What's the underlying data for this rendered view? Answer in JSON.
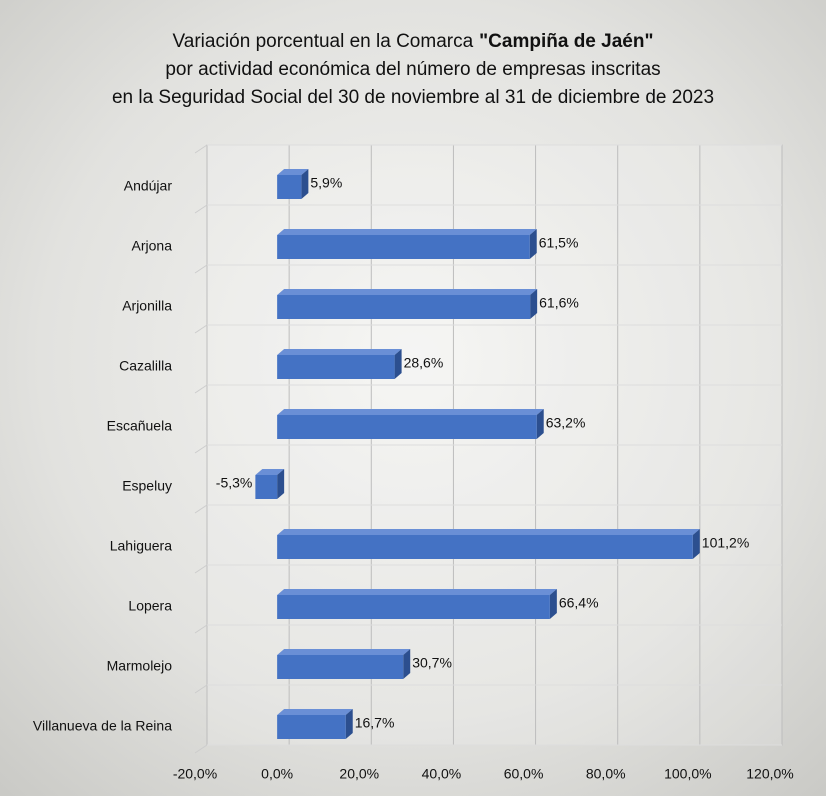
{
  "chart_data": {
    "type": "bar3d_horizontal",
    "title_lead": "Variación porcentual en la Comarca",
    "title_highlight": "\"Campiña de Jaén\"",
    "subtitle_lines": [
      "por actividad económica del número de empresas inscritas",
      "en la Seguridad Social del 30 de noviembre al 31 de diciembre de 2023"
    ],
    "categories": [
      "Andújar",
      "Arjona",
      "Arjonilla",
      "Cazalilla",
      "Escañuela",
      "Espeluy",
      "Lahiguera",
      "Lopera",
      "Marmolejo",
      "Villanueva de la Reina"
    ],
    "values": [
      5.9,
      61.5,
      61.6,
      28.6,
      63.2,
      -5.3,
      101.2,
      66.4,
      30.7,
      16.7
    ],
    "value_labels": [
      "5,9%",
      "61,5%",
      "61,6%",
      "28,6%",
      "63,2%",
      "-5,3%",
      "101,2%",
      "66,4%",
      "30,7%",
      "16,7%"
    ],
    "color": "#4472c4",
    "xlim": [
      -20,
      120
    ],
    "xticks": [
      {
        "value": -20,
        "label": "-20,0%"
      },
      {
        "value": 0,
        "label": "0,0%"
      },
      {
        "value": 20,
        "label": "20,0%"
      },
      {
        "value": 40,
        "label": "40,0%"
      },
      {
        "value": 60,
        "label": "60,0%"
      },
      {
        "value": 80,
        "label": "80,0%"
      },
      {
        "value": 100,
        "label": "100,0%"
      },
      {
        "value": 120,
        "label": "120,0%"
      }
    ],
    "grid": true
  }
}
